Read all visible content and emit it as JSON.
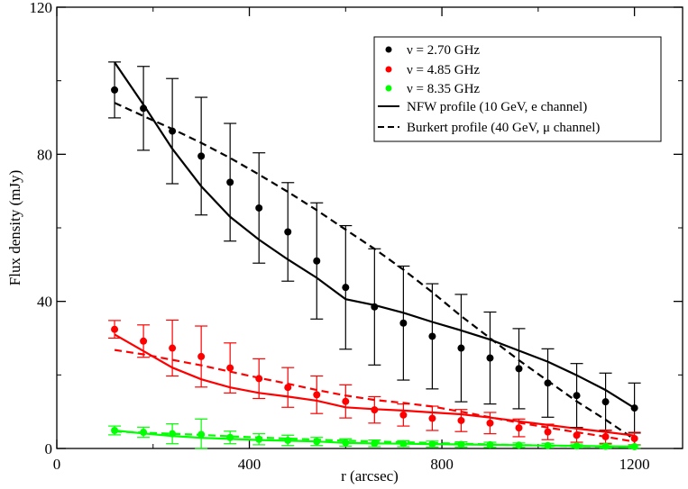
{
  "chart_data": {
    "type": "scatter",
    "title": "",
    "xlabel": "r (arcsec)",
    "ylabel": "Flux density (mJy)",
    "xlim": [
      0,
      1300
    ],
    "ylim": [
      0,
      120
    ],
    "xticks": [
      0,
      400,
      800,
      1200
    ],
    "yticks": [
      0,
      40,
      80,
      120
    ],
    "xtick_labels": [
      "0",
      "400",
      "800",
      "1200"
    ],
    "ytick_labels": [
      "0",
      "40",
      "80",
      "120"
    ],
    "legend_position": "top-right",
    "data_series": [
      {
        "name": "ν = 2.70 GHz",
        "color": "#000000",
        "x": [
          120,
          180,
          240,
          300,
          360,
          420,
          480,
          540,
          600,
          660,
          720,
          780,
          840,
          900,
          960,
          1020,
          1080,
          1140,
          1200
        ],
        "y": [
          97.5,
          92.5,
          86.3,
          79.5,
          72.4,
          65.4,
          58.9,
          51.0,
          43.8,
          38.5,
          34.1,
          30.5,
          27.3,
          24.6,
          21.7,
          17.8,
          14.4,
          12.7,
          11.0
        ],
        "err": [
          7.6,
          11.4,
          14.3,
          16.0,
          16.0,
          15.0,
          13.4,
          15.8,
          16.8,
          15.8,
          15.5,
          14.3,
          14.6,
          12.5,
          10.9,
          9.3,
          8.7,
          7.8,
          6.8
        ]
      },
      {
        "name": "ν = 4.85 GHz",
        "color": "#ff0000",
        "x": [
          120,
          180,
          240,
          300,
          360,
          420,
          480,
          540,
          600,
          660,
          720,
          780,
          840,
          900,
          960,
          1020,
          1080,
          1140,
          1200
        ],
        "y": [
          32.4,
          29.2,
          27.3,
          25.0,
          21.9,
          19.0,
          16.6,
          14.6,
          12.8,
          10.5,
          9.1,
          8.2,
          7.6,
          6.9,
          5.6,
          4.5,
          3.6,
          3.2,
          2.7
        ],
        "err": [
          2.4,
          4.4,
          7.6,
          8.3,
          6.8,
          5.4,
          5.4,
          5.1,
          4.5,
          3.6,
          3.0,
          3.3,
          3.0,
          2.9,
          2.4,
          2.1,
          1.9,
          1.8,
          1.7
        ]
      },
      {
        "name": "ν = 8.35 GHz",
        "color": "#00ff00",
        "x": [
          120,
          180,
          240,
          300,
          360,
          420,
          480,
          540,
          600,
          660,
          720,
          780,
          840,
          900,
          960,
          1020,
          1080,
          1140,
          1200
        ],
        "y": [
          4.9,
          4.4,
          4.0,
          3.8,
          3.0,
          2.5,
          2.2,
          1.9,
          1.6,
          1.4,
          1.3,
          1.2,
          1.1,
          1.0,
          0.9,
          0.8,
          0.7,
          0.6,
          0.5
        ],
        "err": [
          1.2,
          1.4,
          2.7,
          4.2,
          1.7,
          1.5,
          1.4,
          1.1,
          1.0,
          0.9,
          0.8,
          0.8,
          0.7,
          0.7,
          0.6,
          0.6,
          0.5,
          0.5,
          0.4
        ]
      }
    ],
    "model_lines": [
      {
        "name": "NFW profile (10 GeV, e channel)",
        "style": "solid",
        "in_legend": true,
        "color": "#000000",
        "x": [
          120,
          180,
          240,
          300,
          360,
          420,
          480,
          540,
          600,
          660,
          720,
          780,
          840,
          900,
          960,
          1020,
          1080,
          1140,
          1200
        ],
        "y": [
          105.0,
          93.5,
          81.5,
          71.3,
          63.0,
          56.8,
          51.4,
          46.4,
          40.6,
          39.0,
          36.9,
          34.4,
          32.1,
          29.6,
          26.6,
          23.6,
          19.9,
          15.9,
          11.0
        ]
      },
      {
        "name": "Burkert profile (40 GeV, μ channel)",
        "style": "dashed",
        "in_legend": true,
        "color": "#000000",
        "x": [
          120,
          180,
          240,
          300,
          360,
          420,
          480,
          540,
          600,
          660,
          720,
          780,
          840,
          900,
          960,
          1020,
          1080,
          1140,
          1200
        ],
        "y": [
          94.0,
          90.4,
          86.9,
          83.1,
          79.0,
          74.5,
          69.8,
          64.8,
          59.5,
          54.3,
          48.6,
          42.5,
          36.0,
          30.0,
          24.0,
          18.4,
          12.8,
          7.8,
          2.5
        ]
      },
      {
        "name": "NFW 4.85 GHz",
        "style": "solid",
        "in_legend": false,
        "color": "#ff0000",
        "x": [
          120,
          180,
          240,
          300,
          360,
          420,
          480,
          540,
          600,
          660,
          720,
          780,
          840,
          900,
          960,
          1020,
          1080,
          1140,
          1200
        ],
        "y": [
          31.0,
          26.5,
          22.0,
          18.8,
          16.6,
          15.1,
          14.1,
          13.0,
          11.2,
          10.7,
          10.3,
          9.8,
          9.3,
          8.4,
          7.4,
          6.4,
          5.4,
          4.5,
          3.5
        ]
      },
      {
        "name": "Burkert 4.85 GHz",
        "style": "dashed",
        "in_legend": false,
        "color": "#ff0000",
        "x": [
          120,
          180,
          240,
          300,
          360,
          420,
          480,
          540,
          600,
          660,
          720,
          780,
          840,
          900,
          960,
          1020,
          1080,
          1140,
          1200
        ],
        "y": [
          26.8,
          25.6,
          24.1,
          22.6,
          20.9,
          19.2,
          17.6,
          15.9,
          14.4,
          13.2,
          12.4,
          11.4,
          10.0,
          8.5,
          7.0,
          5.7,
          4.4,
          3.2,
          1.8
        ]
      },
      {
        "name": "NFW 8.35 GHz",
        "style": "solid",
        "in_legend": false,
        "color": "#00ff00",
        "x": [
          120,
          180,
          240,
          300,
          360,
          420,
          480,
          540,
          600,
          660,
          720,
          780,
          840,
          900,
          960,
          1020,
          1080,
          1140,
          1200
        ],
        "y": [
          4.9,
          4.1,
          3.4,
          2.9,
          2.6,
          2.3,
          2.1,
          1.9,
          1.5,
          1.4,
          1.3,
          1.2,
          1.1,
          1.0,
          0.9,
          0.8,
          0.7,
          0.6,
          0.5
        ]
      },
      {
        "name": "Burkert 8.35 GHz",
        "style": "dashed",
        "in_legend": false,
        "color": "#00ff00",
        "x": [
          120,
          180,
          240,
          300,
          360,
          420,
          480,
          540,
          600,
          660,
          720,
          780,
          840,
          900,
          960,
          1020,
          1080,
          1140,
          1200
        ],
        "y": [
          4.6,
          4.3,
          4.0,
          3.7,
          3.3,
          3.0,
          2.7,
          2.4,
          2.1,
          1.9,
          1.7,
          1.5,
          1.3,
          1.1,
          0.9,
          0.8,
          0.6,
          0.5,
          0.3
        ]
      }
    ]
  }
}
